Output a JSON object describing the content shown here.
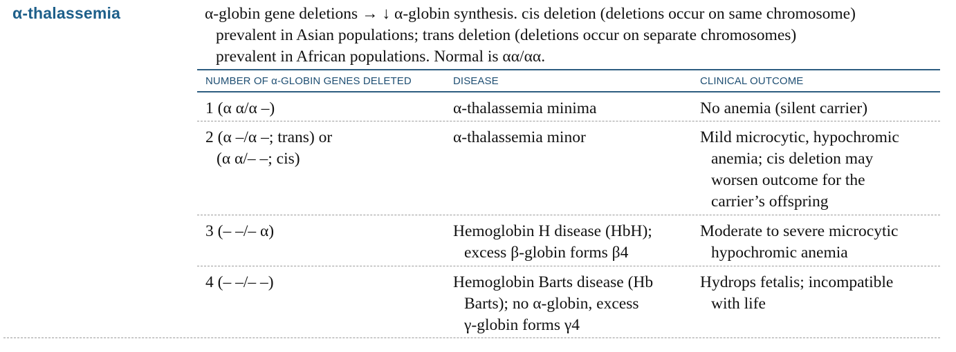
{
  "section": {
    "title": "α-thalassemia"
  },
  "intro": {
    "line1": "α-globin gene deletions → ↓ α-globin synthesis. cis deletion (deletions occur on same chromosome)",
    "line2": "prevalent in Asian populations; trans deletion (deletions occur on separate chromosomes)",
    "line3": "prevalent in African populations. Normal is αα/αα."
  },
  "table": {
    "headers": {
      "genes": "NUMBER OF α-GLOBIN GENES DELETED",
      "disease": "DISEASE",
      "outcome": "CLINICAL OUTCOME"
    },
    "rows": [
      {
        "genes": [
          "1 (α α/α –)"
        ],
        "disease": [
          "α-thalassemia minima"
        ],
        "outcome": [
          "No anemia (silent carrier)"
        ]
      },
      {
        "genes": [
          "2 (α –/α –; trans) or",
          "(α α/– –; cis)"
        ],
        "disease": [
          "α-thalassemia minor"
        ],
        "outcome": [
          "Mild microcytic, hypochromic",
          "anemia; cis deletion may",
          "worsen outcome for the",
          "carrier’s offspring"
        ]
      },
      {
        "genes": [
          "3 (– –/– α)"
        ],
        "disease": [
          "Hemoglobin H disease (HbH);",
          "excess β-globin forms β4"
        ],
        "outcome": [
          "Moderate to severe microcytic",
          "hypochromic anemia"
        ]
      },
      {
        "genes": [
          "4 (– –/– –)"
        ],
        "disease": [
          "Hemoglobin Barts disease (Hb",
          "Barts); no α-globin, excess",
          "γ-globin forms γ4"
        ],
        "outcome": [
          "Hydrops fetalis; incompatible",
          "with life"
        ]
      }
    ]
  }
}
